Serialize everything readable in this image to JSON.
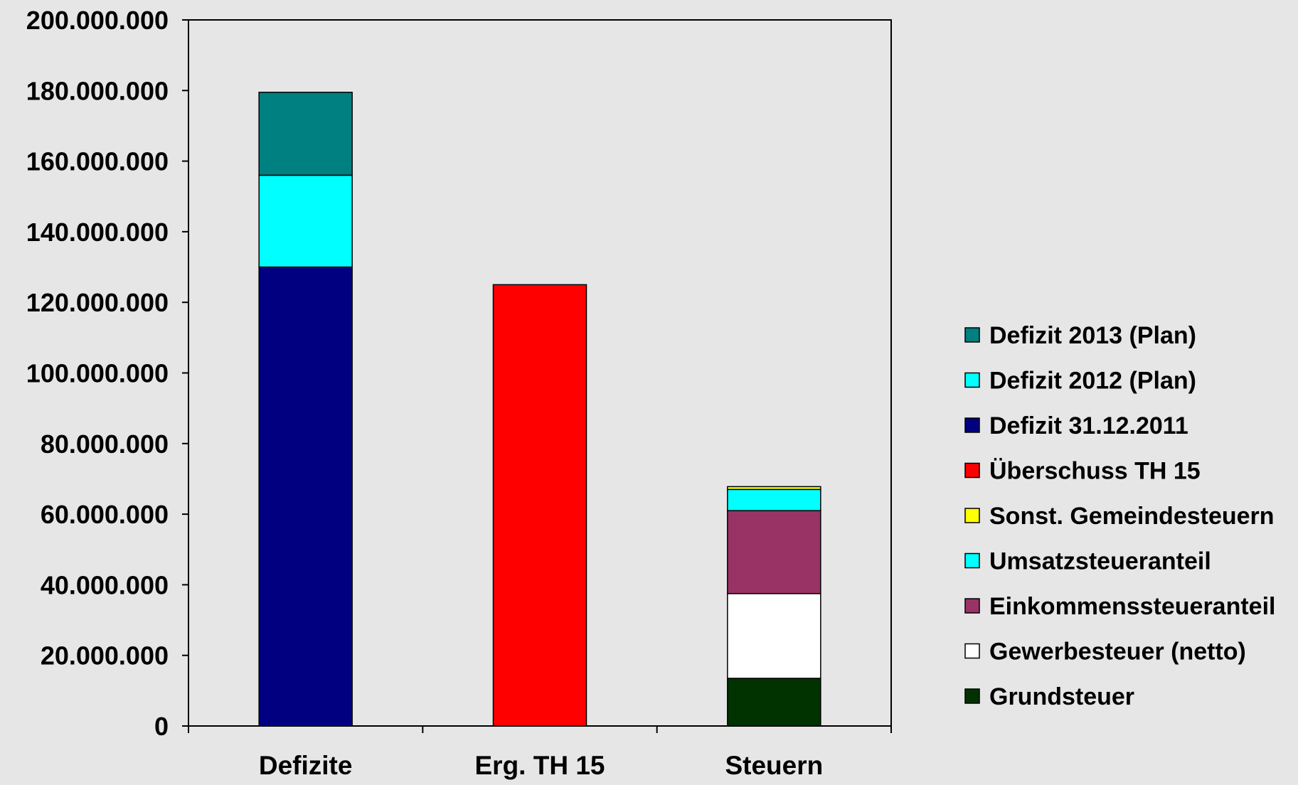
{
  "chart_data": {
    "type": "stacked-bar",
    "title": "",
    "xlabel": "",
    "ylabel": "",
    "ylim": [
      0,
      200000000
    ],
    "yticks": [
      0,
      20000000,
      40000000,
      60000000,
      80000000,
      100000000,
      120000000,
      140000000,
      160000000,
      180000000,
      200000000
    ],
    "ytick_labels": [
      "0",
      "20.000.000",
      "40.000.000",
      "60.000.000",
      "80.000.000",
      "100.000.000",
      "120.000.000",
      "140.000.000",
      "160.000.000",
      "180.000.000",
      "200.000.000"
    ],
    "categories": [
      "Defizite",
      "Erg. TH 15",
      "Steuern"
    ],
    "grid": false,
    "legend_position": "right",
    "series": [
      {
        "name": "Grundsteuer",
        "color": "#003300",
        "values": [
          0,
          0,
          13500000
        ]
      },
      {
        "name": "Gewerbesteuer (netto)",
        "color": "#ffffff",
        "values": [
          0,
          0,
          24000000
        ]
      },
      {
        "name": "Einkommenssteueranteil",
        "color": "#993366",
        "values": [
          0,
          0,
          23500000
        ]
      },
      {
        "name": "Umsatzsteueranteil",
        "color": "#00ffff",
        "values": [
          0,
          0,
          6000000
        ]
      },
      {
        "name": "Sonst. Gemeindesteuern",
        "color": "#ffff00",
        "values": [
          0,
          0,
          800000
        ]
      },
      {
        "name": "Überschuss TH 15",
        "color": "#ff0000",
        "values": [
          0,
          125000000,
          0
        ]
      },
      {
        "name": "Defizit 31.12.2011",
        "color": "#000080",
        "values": [
          130000000,
          0,
          0
        ]
      },
      {
        "name": "Defizit 2012 (Plan)",
        "color": "#00ffff",
        "values": [
          26000000,
          0,
          0
        ]
      },
      {
        "name": "Defizit 2013 (Plan)",
        "color": "#008080",
        "values": [
          23500000,
          0,
          0
        ]
      }
    ],
    "legend_order": [
      "Defizit 2013 (Plan)",
      "Defizit 2012 (Plan)",
      "Defizit 31.12.2011",
      "Überschuss TH 15",
      "Sonst. Gemeindesteuern",
      "Umsatzsteueranteil",
      "Einkommenssteueranteil",
      "Gewerbesteuer (netto)",
      "Grundsteuer"
    ]
  }
}
